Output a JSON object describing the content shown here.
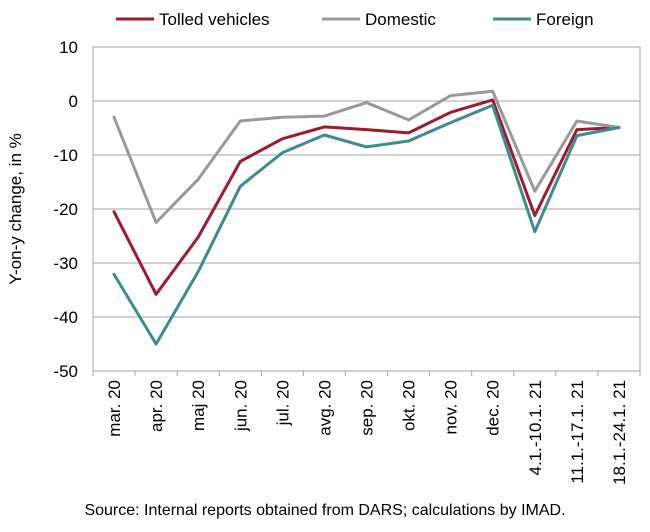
{
  "chart_data": {
    "type": "line",
    "categories": [
      "mar. 20",
      "apr. 20",
      "maj 20",
      "jun. 20",
      "jul. 20",
      "avg. 20",
      "sep. 20",
      "okt. 20",
      "nov. 20",
      "dec. 20",
      "4.1.-10.1. 21",
      "11.1.-17.1. 21",
      "18.1.-24.1. 21"
    ],
    "series": [
      {
        "name": "Tolled vehicles",
        "color": "#9b1b30",
        "values": [
          -20.5,
          -35.8,
          -25.2,
          -11.2,
          -7.0,
          -4.8,
          -5.3,
          -5.9,
          -2.1,
          0.2,
          -21.2,
          -5.3,
          -4.9
        ]
      },
      {
        "name": "Domestic",
        "color": "#999999",
        "values": [
          -3.0,
          -22.5,
          -14.5,
          -3.7,
          -3.0,
          -2.8,
          -0.3,
          -3.5,
          1.0,
          1.8,
          -16.7,
          -3.7,
          -4.9
        ]
      },
      {
        "name": "Foreign",
        "color": "#3d8b8f",
        "values": [
          -32.1,
          -45.0,
          -31.6,
          -15.8,
          -9.6,
          -6.3,
          -8.5,
          -7.4,
          -4.0,
          -0.8,
          -24.2,
          -6.4,
          -4.9
        ]
      }
    ],
    "ylabel": "Y-on-y change, in %",
    "ylim": [
      -50,
      10
    ],
    "yticks": [
      10,
      0,
      -10,
      -20,
      -30,
      -40,
      -50
    ],
    "grid": true,
    "legend": "top"
  },
  "source": "Source: Internal reports obtained from DARS; calculations by IMAD."
}
